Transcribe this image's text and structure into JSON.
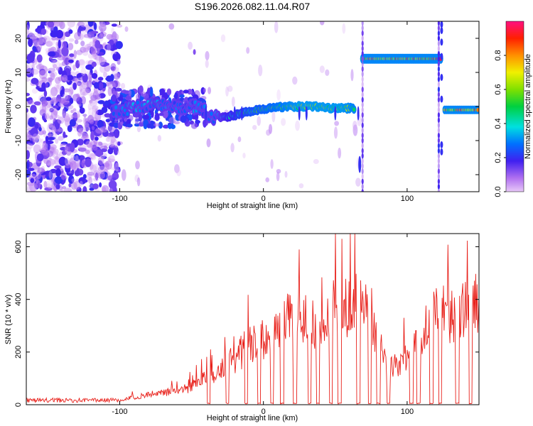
{
  "chart_data": [
    {
      "type": "heatmap",
      "title": "S196.2026.082.11.04.R07",
      "xlabel": "Height of straight line (km)",
      "ylabel": "Frequency (Hz)",
      "xlim": [
        -165,
        150
      ],
      "ylim": [
        -25,
        25
      ],
      "xticks": [
        "-100",
        "0",
        "100"
      ],
      "xtick_values": [
        -100,
        0,
        100
      ],
      "yticks": [
        "-20",
        "-10",
        "0",
        "10",
        "20"
      ],
      "ytick_values": [
        -20,
        -10,
        0,
        10,
        20
      ],
      "colorbar": {
        "label": "Normalized spectral amplitude",
        "range": [
          0,
          1
        ],
        "ticks": [
          "0.0",
          "0.2",
          "0.4",
          "0.6",
          "0.8"
        ],
        "tick_values": [
          0.0,
          0.2,
          0.4,
          0.6,
          0.8
        ]
      },
      "ridge": [
        {
          "x": -105,
          "freq": -1.5,
          "amp": 0.25
        },
        {
          "x": -95,
          "freq": -1.0,
          "amp": 0.35
        },
        {
          "x": -85,
          "freq": 0.0,
          "amp": 0.3
        },
        {
          "x": -75,
          "freq": 0.5,
          "amp": 0.35
        },
        {
          "x": -65,
          "freq": 0.0,
          "amp": 0.3
        },
        {
          "x": -55,
          "freq": -0.5,
          "amp": 0.3
        },
        {
          "x": -45,
          "freq": 0.0,
          "amp": 0.3
        },
        {
          "x": -35,
          "freq": -3.5,
          "amp": 0.3
        },
        {
          "x": -25,
          "freq": -3.0,
          "amp": 0.4
        },
        {
          "x": -15,
          "freq": -2.0,
          "amp": 0.5
        },
        {
          "x": -5,
          "freq": -1.0,
          "amp": 0.55
        },
        {
          "x": 5,
          "freq": -0.5,
          "amp": 0.6
        },
        {
          "x": 15,
          "freq": 0.0,
          "amp": 0.65
        },
        {
          "x": 25,
          "freq": 0.0,
          "amp": 0.7
        },
        {
          "x": 35,
          "freq": 0.0,
          "amp": 0.7
        },
        {
          "x": 45,
          "freq": -0.5,
          "amp": 0.7
        },
        {
          "x": 55,
          "freq": -0.5,
          "amp": 0.7
        },
        {
          "x": 63,
          "freq": -0.5,
          "amp": 0.65
        }
      ],
      "high_band": {
        "x_start": 69,
        "x_end": 124,
        "freq": 14.0,
        "amp": 0.95
      },
      "low_band_2": {
        "x_start": 126,
        "x_end": 150,
        "freq": -1.0,
        "amp": 0.85
      }
    },
    {
      "type": "line",
      "xlabel": "Height of straight line (km)",
      "ylabel": "SNR (10 * v/v)",
      "xlim": [
        -165,
        150
      ],
      "ylim": [
        0,
        650
      ],
      "xticks": [
        "-100",
        "0",
        "100"
      ],
      "xtick_values": [
        -100,
        0,
        100
      ],
      "yticks": [
        "0",
        "200",
        "400",
        "600"
      ],
      "ytick_values": [
        0,
        200,
        400,
        600
      ],
      "series": [
        {
          "name": "SNR",
          "color": "#e8201a",
          "envelope_x": [
            -165,
            -140,
            -120,
            -100,
            -90,
            -80,
            -70,
            -60,
            -50,
            -40,
            -30,
            -20,
            -10,
            0,
            10,
            20,
            30,
            40,
            50,
            60,
            68,
            75,
            85,
            90,
            95,
            100,
            110,
            115,
            120,
            130,
            140,
            150
          ],
          "envelope_y": [
            15,
            15,
            15,
            20,
            35,
            45,
            55,
            60,
            80,
            120,
            160,
            210,
            280,
            300,
            350,
            400,
            390,
            340,
            400,
            450,
            460,
            410,
            190,
            170,
            190,
            220,
            320,
            420,
            430,
            420,
            440,
            470
          ],
          "dropouts_x": [
            -38,
            -25,
            -12,
            -3,
            6,
            13,
            22,
            32,
            38,
            47,
            53,
            66,
            74,
            80,
            87,
            103,
            108,
            117,
            123,
            135,
            144
          ]
        }
      ]
    }
  ]
}
